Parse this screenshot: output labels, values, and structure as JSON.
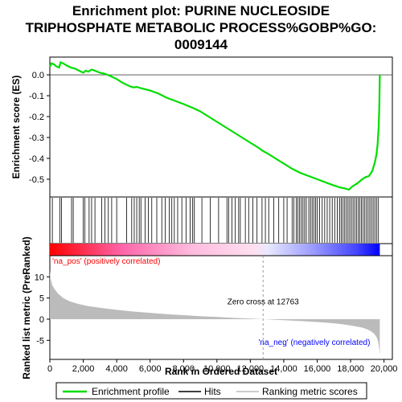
{
  "chart_data": {
    "type": "line",
    "title_lines": [
      "Enrichment plot: PURINE NUCLEOSIDE",
      "TRIPHOSPHATE METABOLIC PROCESS%GOBP%GO:",
      "0009144"
    ],
    "colors": {
      "es_line": "#00dd00",
      "hit_line": "#000000",
      "metric_fill": "#bbbbbb",
      "pos_bar": "#ff0000",
      "neg_bar": "#0000ff",
      "pos_label": "#ff0000",
      "neg_label": "#0000ff",
      "zero_cross_line": "#999999",
      "frame": "#000000"
    },
    "es_panel": {
      "ylabel": "Enrichment score (ES)",
      "ylim": [
        -0.585,
        0.085
      ],
      "yticks": [
        0.0,
        -0.1,
        -0.2,
        -0.3,
        -0.4,
        -0.5
      ],
      "ytick_labels": [
        "0.0",
        "-0.1",
        "-0.2",
        "-0.3",
        "-0.4",
        "-0.5"
      ],
      "series": {
        "name": "Enrichment profile",
        "x": [
          0,
          100,
          250,
          400,
          550,
          650,
          800,
          1000,
          1250,
          1500,
          1750,
          2000,
          2150,
          2300,
          2500,
          2700,
          3000,
          3300,
          3600,
          4000,
          4400,
          4800,
          5000,
          5200,
          5500,
          6000,
          6500,
          7000,
          7500,
          8000,
          8600,
          9000,
          9500,
          10000,
          10500,
          11000,
          11500,
          12000,
          12500,
          12763,
          13000,
          13500,
          14000,
          14500,
          15000,
          15500,
          16000,
          16500,
          17000,
          17400,
          17700,
          17900,
          18100,
          18400,
          18700,
          18900,
          19100,
          19300,
          19450,
          19550,
          19620,
          19680,
          19720,
          19750
        ],
        "y": [
          0.04,
          0.055,
          0.05,
          0.04,
          0.035,
          0.06,
          0.055,
          0.045,
          0.035,
          0.03,
          0.02,
          0.01,
          0.02,
          0.015,
          0.025,
          0.02,
          0.01,
          0.005,
          -0.005,
          -0.02,
          -0.04,
          -0.055,
          -0.06,
          -0.058,
          -0.065,
          -0.075,
          -0.09,
          -0.11,
          -0.125,
          -0.14,
          -0.16,
          -0.175,
          -0.2,
          -0.225,
          -0.25,
          -0.275,
          -0.3,
          -0.325,
          -0.35,
          -0.365,
          -0.375,
          -0.4,
          -0.425,
          -0.45,
          -0.47,
          -0.485,
          -0.5,
          -0.515,
          -0.53,
          -0.54,
          -0.545,
          -0.55,
          -0.535,
          -0.52,
          -0.5,
          -0.49,
          -0.485,
          -0.46,
          -0.42,
          -0.38,
          -0.33,
          -0.25,
          -0.15,
          0.0
        ]
      }
    },
    "hits": {
      "name": "Hits",
      "positions": [
        150,
        600,
        700,
        1300,
        1400,
        2000,
        2100,
        2350,
        2500,
        2700,
        3100,
        3300,
        3500,
        3700,
        4000,
        4600,
        4900,
        5050,
        5200,
        5350,
        5450,
        5700,
        5900,
        6100,
        6400,
        6700,
        6900,
        7150,
        7300,
        7450,
        7650,
        7900,
        8150,
        8400,
        8550,
        8650,
        9100,
        9600,
        10100,
        10600,
        10700,
        10900,
        11100,
        11300,
        11400,
        11700,
        11900,
        12150,
        12400,
        12700,
        12900,
        13100,
        13400,
        13700,
        14000,
        14200,
        14500,
        14600,
        14750,
        14850,
        14950,
        15050,
        15150,
        15250,
        15350,
        15500,
        15600,
        15700,
        15800,
        15900,
        16000,
        16150,
        16300,
        16450,
        16600,
        16750,
        16900,
        17050,
        17200,
        17350,
        17450,
        17550,
        17650,
        17750,
        17850,
        17950,
        18050,
        18150,
        18250,
        18350,
        18450,
        18550,
        18650,
        18750,
        18850,
        18950,
        19050,
        19150,
        19250,
        19350,
        19450,
        19550,
        19650
      ]
    },
    "metric_panel": {
      "ylabel": "Ranked list metric (PreRanked)",
      "ylim": [
        -9.5,
        15
      ],
      "yticks": [
        10,
        5,
        0,
        -5
      ],
      "ytick_labels": [
        "10",
        "5",
        "0",
        "-5"
      ],
      "series": {
        "name": "Ranking metric scores",
        "x": [
          0,
          50,
          150,
          300,
          500,
          800,
          1200,
          1700,
          2300,
          3000,
          4000,
          5000,
          6000,
          7000,
          8000,
          9000,
          10000,
          11000,
          12000,
          12763,
          13500,
          14500,
          15500,
          16500,
          17200,
          17800,
          18300,
          18700,
          19000,
          19200,
          19400,
          19550,
          19650,
          19700,
          19750
        ],
        "y": [
          11.5,
          9.5,
          8.0,
          7.0,
          6.0,
          5.0,
          4.2,
          3.6,
          3.1,
          2.7,
          2.2,
          1.8,
          1.5,
          1.2,
          0.95,
          0.7,
          0.5,
          0.3,
          0.12,
          0.0,
          -0.15,
          -0.35,
          -0.55,
          -0.8,
          -1.05,
          -1.35,
          -1.7,
          -2.0,
          -2.4,
          -2.8,
          -3.4,
          -4.2,
          -5.2,
          -6.5,
          -8.5
        ]
      },
      "zero_cross_label": "Zero cross at 12763",
      "zero_cross": 12763,
      "pos_label": "'na_pos' (positively correlated)",
      "neg_label": "'na_neg' (negatively correlated)"
    },
    "x_axis": {
      "label": "Rank in Ordered Dataset",
      "lim": [
        0,
        20500
      ],
      "ticks": [
        0,
        2000,
        4000,
        6000,
        8000,
        10000,
        12000,
        14000,
        16000,
        18000,
        20000
      ],
      "tick_labels": [
        "0",
        "2,000",
        "4,000",
        "6,000",
        "8,000",
        "10,000",
        "12,000",
        "14,000",
        "16,000",
        "18,000",
        "20,000"
      ],
      "n_genes": 19750
    },
    "legend": {
      "placement": "bottom",
      "items": [
        {
          "label": "Enrichment profile",
          "color": "#00dd00"
        },
        {
          "label": "Hits",
          "color": "#000000"
        },
        {
          "label": "Ranking metric scores",
          "color": "#bbbbbb"
        }
      ]
    }
  }
}
